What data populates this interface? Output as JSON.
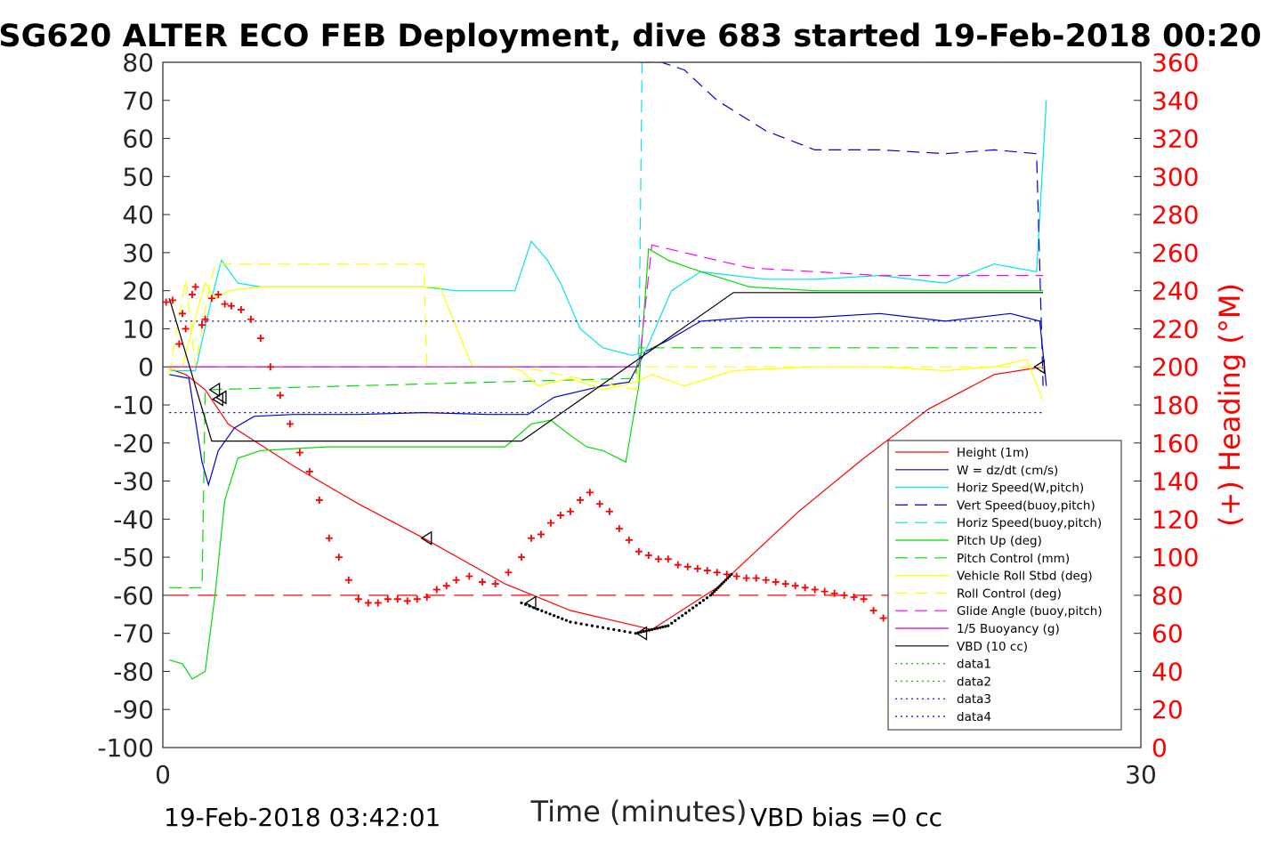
{
  "chart_data": {
    "type": "line",
    "title": "SG620 ALTER ECO FEB Deployment, dive 683 started 19-Feb-2018 00:20",
    "xlabel": "Time (minutes)",
    "ylabel_right": "(+) Heading (°M)",
    "xlim": [
      0,
      30
    ],
    "ylim_left": [
      -100,
      80
    ],
    "ylim_right": [
      0,
      360
    ],
    "x_ticks": [
      "0",
      "30"
    ],
    "y_ticks_left": [
      "80",
      "70",
      "60",
      "50",
      "40",
      "30",
      "20",
      "10",
      "0",
      "-10",
      "-20",
      "-30",
      "-40",
      "-50",
      "-60",
      "-70",
      "-80",
      "-90",
      "-100"
    ],
    "y_ticks_right": [
      "360",
      "340",
      "320",
      "300",
      "280",
      "260",
      "240",
      "220",
      "200",
      "180",
      "160",
      "140",
      "120",
      "100",
      "80",
      "60",
      "40",
      "20",
      "0"
    ],
    "footer_left": "19-Feb-2018 03:42:01",
    "footer_right": "VBD bias =0 cc",
    "legend_placement": "lower-right",
    "colors": {
      "right_axis": "#ff0000",
      "axes": "#262626"
    },
    "series": [
      {
        "name": "Height (1m)",
        "color": "#ff0000",
        "dash": "solid",
        "x": [
          0.2,
          0.7,
          1.3,
          2.0,
          4.0,
          6.0,
          8.0,
          10.5,
          12.5,
          15.0,
          17.0,
          18.0,
          19.5,
          21.5,
          23.5,
          25.5,
          27.0
        ],
        "y": [
          -0.5,
          -2,
          -6,
          -15,
          -26,
          -36,
          -45,
          -57,
          -64,
          -69,
          -58,
          -50,
          -38,
          -24,
          -11,
          -2,
          0
        ]
      },
      {
        "name": "W = dz/dt (cm/s)",
        "color": "#0000cc",
        "dash": "solid",
        "x": [
          0.2,
          0.8,
          1.2,
          1.4,
          1.7,
          2.2,
          2.8,
          4,
          6,
          8,
          10,
          11.2,
          12,
          13.5,
          14.3,
          14.8,
          15.5,
          16.5,
          18,
          20,
          22,
          24,
          26,
          26.9,
          27.1
        ],
        "y": [
          -2,
          -3,
          -25,
          -31,
          -22,
          -16,
          -13,
          -12.5,
          -12.5,
          -12,
          -12.5,
          -12.5,
          -8,
          -5,
          -4,
          4,
          7,
          12,
          13,
          13,
          14,
          12,
          14,
          12,
          -5
        ]
      },
      {
        "name": "Horiz Speed(W,pitch)",
        "color": "#00e5e5",
        "dash": "solid",
        "x": [
          0.2,
          1.0,
          1.5,
          1.8,
          2.3,
          3.0,
          5,
          7,
          8,
          9,
          10,
          10.8,
          11.3,
          11.8,
          12.2,
          12.8,
          13.5,
          14.4,
          14.8,
          15.2,
          15.6,
          16.5,
          17.5,
          18.5,
          20,
          22,
          24,
          25.5,
          26.8,
          27.1
        ],
        "y": [
          -1,
          -1,
          18,
          28,
          22,
          21,
          21,
          21,
          21,
          20,
          20,
          20,
          33,
          28,
          22,
          10,
          5,
          3,
          4,
          12,
          20,
          25,
          24,
          23,
          23,
          24,
          22,
          27,
          25,
          70
        ]
      },
      {
        "name": "Vert Speed(buoy,pitch)",
        "color": "#0000cc",
        "dash": "dashed",
        "x": [
          14.6,
          14.8,
          15.3,
          16.0,
          17.0,
          18.5,
          20.0,
          22.0,
          24.0,
          25.5,
          26.8,
          27.0
        ],
        "y": [
          80,
          80,
          80,
          78,
          70,
          62,
          57,
          57,
          56,
          57,
          56,
          -5
        ]
      },
      {
        "name": "Horiz Speed(buoy,pitch)",
        "color": "#00e5e5",
        "dash": "dashed",
        "x": [
          14.6,
          14.7,
          14.8,
          26.9,
          27.0
        ],
        "y": [
          0,
          80,
          80,
          80,
          80
        ]
      },
      {
        "name": "Pitch Up (deg)",
        "color": "#00dd00",
        "dash": "solid",
        "x": [
          0.2,
          0.6,
          0.9,
          1.3,
          1.6,
          1.9,
          2.3,
          3.0,
          5,
          7,
          9,
          10.5,
          11.3,
          11.9,
          12.5,
          13.0,
          13.5,
          14.2,
          14.6,
          14.9,
          15.5,
          16.5,
          18,
          20,
          22,
          24,
          26,
          27.0
        ],
        "y": [
          -77,
          -78,
          -82,
          -80,
          -60,
          -35,
          -24,
          -22,
          -21,
          -21,
          -21,
          -21,
          -15,
          -14,
          -18,
          -21,
          -22,
          -25,
          -5,
          31,
          28,
          25,
          21,
          20,
          20,
          20,
          20,
          20
        ]
      },
      {
        "name": "Pitch Control (mm)",
        "color": "#00dd00",
        "dash": "dashed",
        "x": [
          0.2,
          1.2,
          1.3,
          1.4,
          14.5,
          14.6,
          15.0,
          27.0
        ],
        "y": [
          -58,
          -58,
          -6,
          -6,
          -3,
          5,
          5,
          5
        ]
      },
      {
        "name": "Vehicle Roll Stbd (deg)",
        "color": "#ffff00",
        "dash": "solid",
        "x": [
          0.2,
          0.6,
          0.9,
          1.3,
          1.6,
          2.0,
          3.0,
          5,
          7,
          8.5,
          9.5,
          10.5,
          11.0,
          11.5,
          12.5,
          13.5,
          14.5,
          15.0,
          16.0,
          17.5,
          20.0,
          22.0,
          24.0,
          25.5,
          26.5,
          27.0
        ],
        "y": [
          -1,
          0,
          10,
          22,
          18,
          20,
          21,
          21,
          21,
          21,
          0,
          0,
          -1,
          -5,
          -3,
          -6,
          -4,
          -2,
          -5,
          -1,
          0,
          0,
          -1,
          0,
          2,
          -9
        ]
      },
      {
        "name": "Roll Control (deg)",
        "color": "#ffff00",
        "dash": "dashed",
        "x": [
          0.2,
          0.7,
          1.0,
          1.4,
          1.6,
          8.0,
          8.1,
          11.0,
          14.5,
          14.6,
          15.0,
          27.0
        ],
        "y": [
          -2,
          23,
          0,
          20,
          27,
          27,
          0,
          0,
          -6,
          0,
          0,
          0
        ]
      },
      {
        "name": "Glide Angle (buoy,pitch)",
        "color": "#ff00ff",
        "dash": "dashed",
        "x": [
          14.6,
          15.0,
          15.5,
          16.5,
          18.0,
          20.0,
          22.0,
          24.0,
          26.0,
          27.0
        ],
        "y": [
          0,
          32,
          31,
          29,
          26,
          25,
          24,
          24,
          24,
          24
        ]
      },
      {
        "name": "1/5 Buoyancy (g)",
        "color": "#cc00cc",
        "dash": "solid",
        "x": [
          0.2,
          14.6
        ],
        "y": [
          0,
          0
        ]
      },
      {
        "name": "VBD (10 cc)",
        "color": "#000000",
        "dash": "solid",
        "x": [
          0.2,
          1.5,
          11.0,
          17.5,
          27.0
        ],
        "y": [
          18,
          -19.5,
          -19.5,
          19.5,
          19.5
        ]
      },
      {
        "name": "data1",
        "color": "#00cc00",
        "dash": "dotted",
        "x": [],
        "y": []
      },
      {
        "name": "data2",
        "color": "#00cc00",
        "dash": "dotted",
        "x": [],
        "y": []
      },
      {
        "name": "data3",
        "color": "#0000cc",
        "dash": "dotted",
        "x": [
          0.2,
          27.0
        ],
        "y": [
          12,
          12
        ]
      },
      {
        "name": "data4",
        "color": "#0000cc",
        "dash": "dotted",
        "x": [
          0.2,
          27.0
        ],
        "y": [
          -12,
          -12
        ]
      }
    ],
    "extra_lines": [
      {
        "color": "#ff0000",
        "dash": "longdash",
        "x": [
          0.2,
          27.0
        ],
        "y": [
          -60,
          -60
        ]
      },
      {
        "color": "#7744ff",
        "dash": "longdash",
        "x": [
          0.2,
          14.6
        ],
        "y": [
          0,
          0
        ]
      }
    ],
    "markers": [
      {
        "x": 1.6,
        "y": -6
      },
      {
        "x": 1.7,
        "y": -8.5
      },
      {
        "x": 1.8,
        "y": -8
      },
      {
        "x": 8.1,
        "y": -45
      },
      {
        "x": 11.3,
        "y": -62
      },
      {
        "x": 14.7,
        "y": -70
      },
      {
        "x": 26.9,
        "y": 0
      }
    ],
    "dotted_curve": {
      "color": "#000000",
      "x": [
        11.0,
        12.5,
        14.5,
        15.5,
        16.8,
        17.5
      ],
      "y": [
        -62,
        -67,
        -70,
        -68,
        -60,
        -54
      ]
    },
    "heading": {
      "color": "#ff0000",
      "x": [
        0.1,
        0.3,
        0.5,
        0.6,
        0.7,
        0.9,
        1.0,
        1.2,
        1.3,
        1.5,
        1.7,
        1.9,
        2.1,
        2.4,
        2.7,
        3.0,
        3.3,
        3.6,
        3.9,
        4.2,
        4.5,
        4.8,
        5.1,
        5.4,
        5.7,
        6.0,
        6.3,
        6.6,
        6.9,
        7.2,
        7.5,
        7.8,
        8.1,
        8.4,
        8.7,
        9.0,
        9.4,
        9.8,
        10.2,
        10.6,
        11.0,
        11.3,
        11.6,
        11.9,
        12.2,
        12.5,
        12.8,
        13.1,
        13.4,
        13.7,
        14.0,
        14.3,
        14.6,
        14.9,
        15.2,
        15.5,
        15.8,
        16.1,
        16.4,
        16.7,
        17.0,
        17.3,
        17.6,
        17.9,
        18.2,
        18.5,
        18.8,
        19.1,
        19.4,
        19.7,
        20.0,
        20.3,
        20.6,
        20.9,
        21.2,
        21.5,
        21.8,
        22.1,
        22.4,
        22.7,
        23.0,
        23.3,
        23.6,
        23.9,
        24.2,
        24.5,
        24.8,
        25.1,
        25.4,
        25.7,
        26.0,
        26.3,
        26.6,
        26.8,
        27.0
      ],
      "y": [
        234,
        235,
        212,
        228,
        220,
        238,
        242,
        222,
        225,
        236,
        238,
        233,
        232,
        230,
        225,
        215,
        200,
        185,
        170,
        155,
        145,
        130,
        110,
        100,
        88,
        78,
        76,
        76,
        78,
        78,
        77,
        78,
        79,
        83,
        85,
        88,
        90,
        87,
        86,
        92,
        100,
        110,
        112,
        118,
        122,
        124,
        130,
        134,
        128,
        124,
        115,
        109,
        103,
        101,
        99,
        99,
        96,
        95,
        94,
        93,
        92,
        91,
        90,
        89,
        89,
        88,
        87,
        86,
        85,
        84,
        83,
        82,
        81,
        80,
        79,
        78,
        72,
        68,
        70,
        72,
        73,
        75,
        76,
        74,
        68,
        65,
        64,
        70,
        52,
        72,
        78,
        70,
        65,
        68,
        72
      ]
    }
  }
}
